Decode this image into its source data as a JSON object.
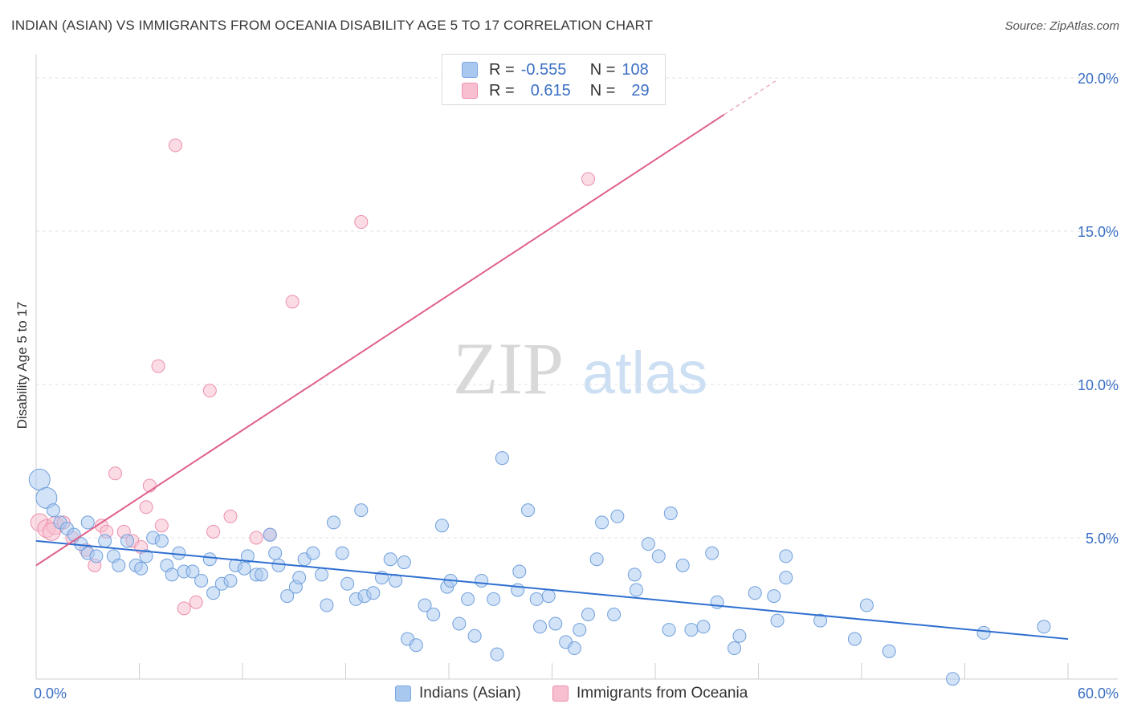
{
  "title": "INDIAN (ASIAN) VS IMMIGRANTS FROM OCEANIA DISABILITY AGE 5 TO 17 CORRELATION CHART",
  "source": "Source: ZipAtlas.com",
  "watermark": {
    "zip": "ZIP",
    "atlas": "atlas"
  },
  "legend": {
    "rows": [
      {
        "r_label": "R =",
        "r_value": "-0.555",
        "n_label": "N =",
        "n_value": "108",
        "color": "#a8c8f0",
        "border": "#7aa7e0"
      },
      {
        "r_label": "R =",
        "r_value": "0.615",
        "n_label": "N =",
        "n_value": "29",
        "color": "#f7bfd0",
        "border": "#ec8fac"
      }
    ]
  },
  "chart_data": {
    "type": "scatter",
    "ylabel": "Disability Age 5 to 17",
    "xlabel": "",
    "xlim": [
      0,
      60
    ],
    "ylim": [
      0,
      20
    ],
    "x_tick_labels": [
      "0.0%",
      "60.0%"
    ],
    "y_tick_labels": [
      "5.0%",
      "10.0%",
      "15.0%",
      "20.0%"
    ],
    "y_ticks": [
      5,
      10,
      15,
      20
    ],
    "grid": true,
    "series": [
      {
        "name": "Indians (Asian)",
        "color": "#a8c8f0",
        "stroke": "#6f9fdc",
        "line_color": "#2f6fd0",
        "trend": {
          "x": [
            0,
            60
          ],
          "y": [
            4.9,
            1.7
          ]
        },
        "points": [
          [
            0.2,
            6.9
          ],
          [
            0.6,
            6.3
          ],
          [
            1.0,
            5.9
          ],
          [
            1.4,
            5.5
          ],
          [
            1.8,
            5.3
          ],
          [
            2.2,
            5.1
          ],
          [
            2.6,
            4.8
          ],
          [
            3.0,
            4.5
          ],
          [
            3.0,
            5.5
          ],
          [
            3.5,
            4.4
          ],
          [
            4.0,
            4.9
          ],
          [
            4.5,
            4.4
          ],
          [
            4.8,
            4.1
          ],
          [
            5.3,
            4.9
          ],
          [
            5.8,
            4.1
          ],
          [
            6.1,
            4.0
          ],
          [
            6.4,
            4.4
          ],
          [
            6.8,
            5.0
          ],
          [
            7.3,
            4.9
          ],
          [
            7.6,
            4.1
          ],
          [
            7.9,
            3.8
          ],
          [
            8.3,
            4.5
          ],
          [
            8.6,
            3.9
          ],
          [
            9.1,
            3.9
          ],
          [
            9.6,
            3.6
          ],
          [
            10.1,
            4.3
          ],
          [
            10.3,
            3.2
          ],
          [
            10.8,
            3.5
          ],
          [
            11.3,
            3.6
          ],
          [
            11.6,
            4.1
          ],
          [
            12.1,
            4.0
          ],
          [
            12.3,
            4.4
          ],
          [
            12.8,
            3.8
          ],
          [
            13.1,
            3.8
          ],
          [
            13.6,
            5.1
          ],
          [
            13.9,
            4.5
          ],
          [
            14.1,
            4.1
          ],
          [
            14.6,
            3.1
          ],
          [
            15.1,
            3.4
          ],
          [
            15.3,
            3.7
          ],
          [
            15.6,
            4.3
          ],
          [
            16.1,
            4.5
          ],
          [
            16.6,
            3.8
          ],
          [
            16.9,
            2.8
          ],
          [
            17.3,
            5.5
          ],
          [
            17.8,
            4.5
          ],
          [
            18.1,
            3.5
          ],
          [
            18.6,
            3.0
          ],
          [
            18.9,
            5.9
          ],
          [
            19.1,
            3.1
          ],
          [
            19.6,
            3.2
          ],
          [
            20.1,
            3.7
          ],
          [
            20.6,
            4.3
          ],
          [
            20.9,
            3.6
          ],
          [
            21.4,
            4.2
          ],
          [
            21.6,
            1.7
          ],
          [
            22.1,
            1.5
          ],
          [
            22.6,
            2.8
          ],
          [
            23.1,
            2.5
          ],
          [
            23.6,
            5.4
          ],
          [
            23.9,
            3.4
          ],
          [
            24.1,
            3.6
          ],
          [
            24.6,
            2.2
          ],
          [
            25.1,
            3.0
          ],
          [
            25.5,
            1.8
          ],
          [
            25.9,
            3.6
          ],
          [
            26.6,
            3.0
          ],
          [
            26.8,
            1.2
          ],
          [
            27.1,
            7.6
          ],
          [
            28.0,
            3.3
          ],
          [
            28.1,
            3.9
          ],
          [
            28.6,
            5.9
          ],
          [
            29.1,
            3.0
          ],
          [
            29.3,
            2.1
          ],
          [
            29.8,
            3.1
          ],
          [
            30.2,
            2.2
          ],
          [
            30.8,
            1.6
          ],
          [
            31.3,
            1.4
          ],
          [
            31.6,
            2.0
          ],
          [
            32.1,
            2.5
          ],
          [
            32.6,
            4.3
          ],
          [
            32.9,
            5.5
          ],
          [
            33.6,
            2.5
          ],
          [
            33.8,
            5.7
          ],
          [
            34.8,
            3.8
          ],
          [
            34.9,
            3.3
          ],
          [
            35.6,
            4.8
          ],
          [
            36.2,
            4.4
          ],
          [
            36.8,
            2.0
          ],
          [
            36.9,
            5.8
          ],
          [
            37.6,
            4.1
          ],
          [
            38.1,
            2.0
          ],
          [
            38.8,
            2.1
          ],
          [
            39.3,
            4.5
          ],
          [
            39.6,
            2.9
          ],
          [
            40.6,
            1.4
          ],
          [
            40.9,
            1.8
          ],
          [
            41.8,
            3.2
          ],
          [
            42.9,
            3.1
          ],
          [
            43.1,
            2.3
          ],
          [
            43.6,
            3.7
          ],
          [
            43.6,
            4.4
          ],
          [
            45.6,
            2.3
          ],
          [
            47.6,
            1.7
          ],
          [
            48.3,
            2.8
          ],
          [
            49.6,
            1.3
          ],
          [
            53.3,
            0.4
          ],
          [
            55.1,
            1.9
          ],
          [
            58.6,
            2.1
          ]
        ],
        "sizes_large": [
          [
            0.2,
            6.9
          ],
          [
            0.6,
            6.3
          ]
        ]
      },
      {
        "name": "Immigrants from Oceania",
        "color": "#f7bfd0",
        "stroke": "#ec8fac",
        "line_color": "#e0608a",
        "trend": {
          "x": [
            0,
            40
          ],
          "y": [
            4.1,
            18.8
          ]
        },
        "trend_dashed": {
          "x": [
            40,
            43
          ],
          "y": [
            18.8,
            19.9
          ]
        },
        "points": [
          [
            0.2,
            5.5
          ],
          [
            0.6,
            5.3
          ],
          [
            1.1,
            5.4
          ],
          [
            1.6,
            5.5
          ],
          [
            2.1,
            5.0
          ],
          [
            2.9,
            4.6
          ],
          [
            3.4,
            4.1
          ],
          [
            3.8,
            5.4
          ],
          [
            4.1,
            5.2
          ],
          [
            4.6,
            7.1
          ],
          [
            5.1,
            5.2
          ],
          [
            5.6,
            4.9
          ],
          [
            6.1,
            4.7
          ],
          [
            6.4,
            6.0
          ],
          [
            6.6,
            6.7
          ],
          [
            7.1,
            10.6
          ],
          [
            7.3,
            5.4
          ],
          [
            8.1,
            17.8
          ],
          [
            8.6,
            2.7
          ],
          [
            9.3,
            2.9
          ],
          [
            10.1,
            9.8
          ],
          [
            10.3,
            5.2
          ],
          [
            11.3,
            5.7
          ],
          [
            12.8,
            5.0
          ],
          [
            13.6,
            5.1
          ],
          [
            14.9,
            12.7
          ],
          [
            18.9,
            15.3
          ],
          [
            32.1,
            16.7
          ],
          [
            0.9,
            5.2
          ]
        ]
      }
    ]
  },
  "bottom_legend": [
    {
      "label": "Indians (Asian)",
      "color": "#a8c8f0",
      "border": "#7aa7e0"
    },
    {
      "label": "Immigrants from Oceania",
      "color": "#f7bfd0",
      "border": "#ec8fac"
    }
  ]
}
